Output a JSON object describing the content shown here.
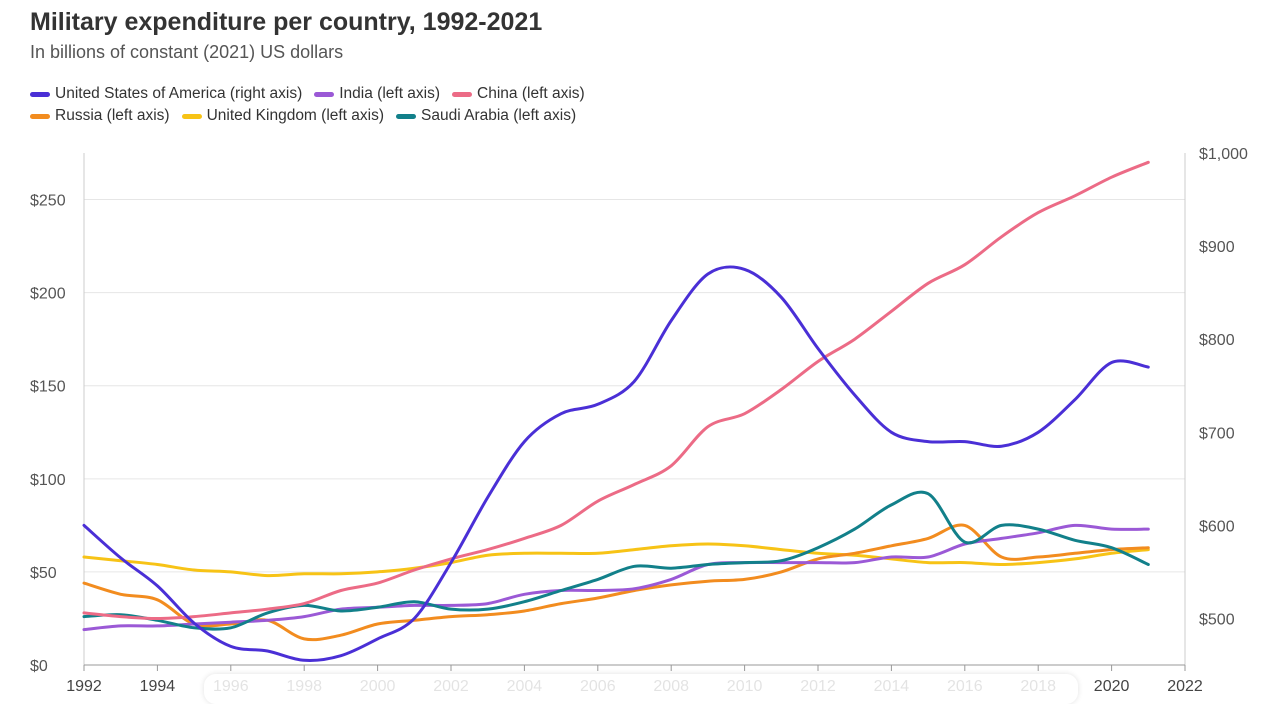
{
  "header": {
    "title": "Military expenditure per country, 1992-2021",
    "subtitle": "In billions of constant (2021) US dollars"
  },
  "chart_data": {
    "type": "line",
    "title": "Military expenditure per country, 1992-2021",
    "subtitle": "In billions of constant (2021) US dollars",
    "xlabel": "",
    "ylabel": "",
    "xlim": [
      1992,
      2022
    ],
    "y_left_lim": [
      0,
      275
    ],
    "y_right_lim": [
      450,
      1000
    ],
    "x_ticks": [
      "1992",
      "1994",
      "1996",
      "1998",
      "2000",
      "2002",
      "2004",
      "2006",
      "2008",
      "2010",
      "2012",
      "2014",
      "2016",
      "2018",
      "2020",
      "2022"
    ],
    "y_left_ticks": [
      "$0",
      "$50",
      "$100",
      "$150",
      "$200",
      "$250"
    ],
    "y_right_ticks": [
      "$500",
      "$600",
      "$700",
      "$800",
      "$900",
      "$1,000"
    ],
    "grid": true,
    "legend_position": "top-left",
    "x": [
      1992,
      1993,
      1994,
      1995,
      1996,
      1997,
      1998,
      1999,
      2000,
      2001,
      2002,
      2003,
      2004,
      2005,
      2006,
      2007,
      2008,
      2009,
      2010,
      2011,
      2012,
      2013,
      2014,
      2015,
      2016,
      2017,
      2018,
      2019,
      2020,
      2021
    ],
    "series": [
      {
        "name": "United States of America (right axis)",
        "axis": "right",
        "color": "#4a2fd6",
        "values": [
          600,
          565,
          535,
          495,
          470,
          465,
          455,
          460,
          478,
          500,
          560,
          630,
          690,
          720,
          730,
          755,
          820,
          870,
          875,
          845,
          790,
          740,
          700,
          690,
          690,
          685,
          700,
          735,
          775,
          770
        ]
      },
      {
        "name": "India (left axis)",
        "axis": "left",
        "color": "#9b59d6",
        "values": [
          19,
          21,
          21,
          22,
          23,
          24,
          26,
          30,
          31,
          32,
          32,
          33,
          38,
          40,
          40,
          41,
          46,
          54,
          55,
          55,
          55,
          55,
          58,
          58,
          65,
          68,
          71,
          75,
          73,
          73
        ]
      },
      {
        "name": "China (left axis)",
        "axis": "left",
        "color": "#ec6b86",
        "values": [
          28,
          26,
          25,
          26,
          28,
          30,
          33,
          40,
          44,
          51,
          57,
          62,
          68,
          75,
          88,
          97,
          107,
          128,
          135,
          148,
          163,
          175,
          190,
          205,
          215,
          230,
          243,
          252,
          262,
          270
        ]
      },
      {
        "name": "Russia (left axis)",
        "axis": "left",
        "color": "#f28c1f",
        "values": [
          44,
          38,
          35,
          22,
          22,
          24,
          14,
          16,
          22,
          24,
          26,
          27,
          29,
          33,
          36,
          40,
          43,
          45,
          46,
          50,
          57,
          60,
          64,
          68,
          75,
          58,
          58,
          60,
          62,
          63
        ]
      },
      {
        "name": "United Kingdom (left axis)",
        "axis": "left",
        "color": "#f7c316",
        "values": [
          58,
          56,
          54,
          51,
          50,
          48,
          49,
          49,
          50,
          52,
          55,
          59,
          60,
          60,
          60,
          62,
          64,
          65,
          64,
          62,
          60,
          59,
          57,
          55,
          55,
          54,
          55,
          57,
          60,
          62
        ]
      },
      {
        "name": "Saudi Arabia (left axis)",
        "axis": "left",
        "color": "#12808a",
        "values": [
          26,
          27,
          24,
          20,
          20,
          28,
          32,
          29,
          31,
          34,
          30,
          30,
          34,
          40,
          46,
          53,
          52,
          54,
          55,
          56,
          63,
          73,
          86,
          92,
          66,
          75,
          73,
          67,
          63,
          54
        ]
      }
    ]
  }
}
